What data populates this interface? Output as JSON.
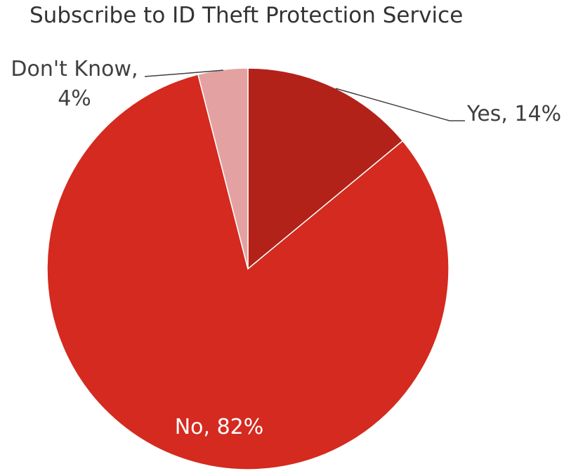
{
  "chart_data": {
    "type": "pie",
    "title": "Subscribe to ID Theft Protection Service",
    "start_angle_deg": 0,
    "direction": "clockwise",
    "slices": [
      {
        "label": "Yes, 14%",
        "name": "Yes",
        "value": 14,
        "color": "#b22219"
      },
      {
        "label": "No, 82%",
        "name": "No",
        "value": 82,
        "color": "#d42a1f"
      },
      {
        "label": "Don't Know, 4%",
        "name": "Don't Know",
        "value": 4,
        "color": "#e3a2a1"
      }
    ],
    "label_colors": {
      "outside": "#404040",
      "inside": "#ffffff"
    }
  }
}
